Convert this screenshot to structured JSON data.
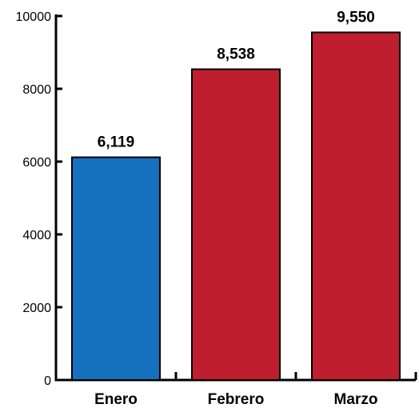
{
  "chart_data": {
    "type": "bar",
    "title": "",
    "xlabel": "",
    "ylabel": "",
    "categories": [
      "Enero",
      "Febrero",
      "Marzo"
    ],
    "values": [
      6119,
      8538,
      9550
    ],
    "data_labels": [
      "6,119",
      "8,538",
      "9,550"
    ],
    "bar_colors": [
      "#1570bd",
      "#be1e2d",
      "#be1e2d"
    ],
    "ylim": [
      0,
      10000
    ],
    "yticks": [
      0,
      2000,
      4000,
      6000,
      8000,
      10000
    ],
    "ytick_labels": [
      "0",
      "2000",
      "4000",
      "6000",
      "8000",
      "10000"
    ],
    "grid": false,
    "legend": "none"
  }
}
